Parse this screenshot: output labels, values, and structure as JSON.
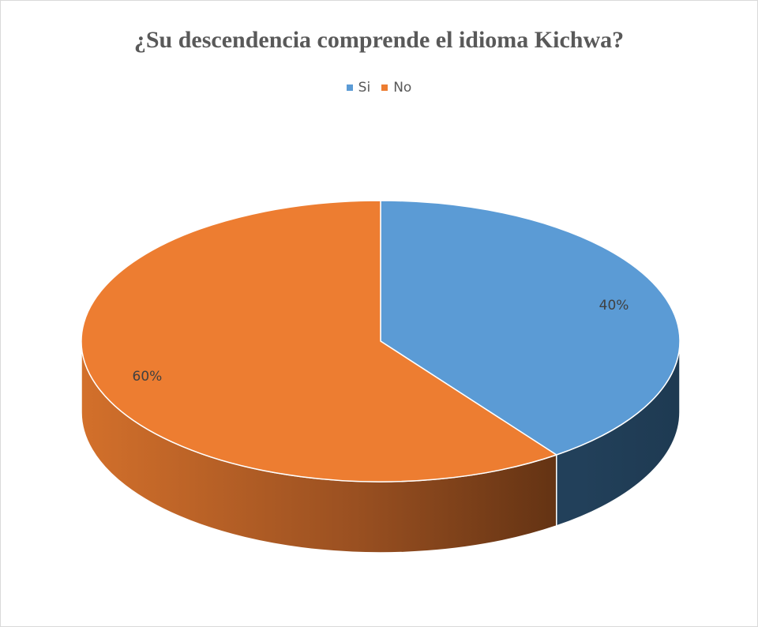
{
  "chart_data": {
    "type": "pie",
    "title": "¿Su descendencia comprende el idioma Kichwa?",
    "legend_position": "top",
    "style": "3d",
    "categories": [
      "Si",
      "No"
    ],
    "values": [
      40,
      60
    ],
    "data_labels": [
      "40%",
      "60%"
    ],
    "colors": [
      "#5B9BD5",
      "#ED7D31"
    ],
    "legend": [
      {
        "label": "Si",
        "color": "#5B9BD5"
      },
      {
        "label": "No",
        "color": "#ED7D31"
      }
    ]
  }
}
